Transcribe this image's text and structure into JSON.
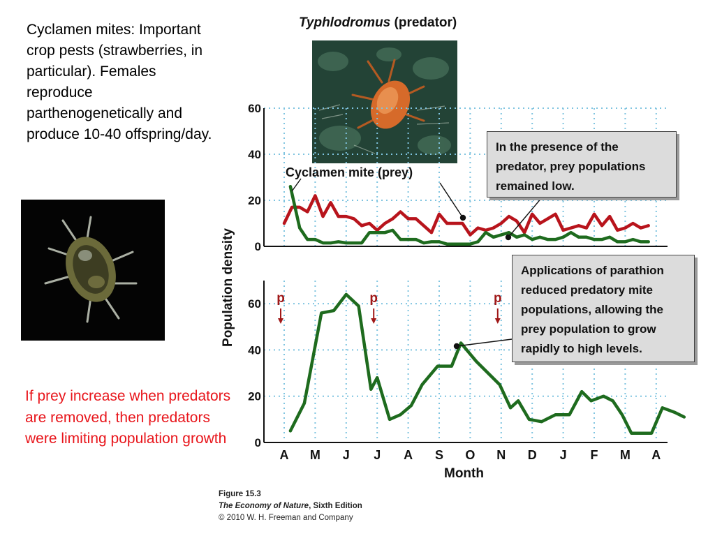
{
  "text": {
    "left_paragraph": "Cyclamen mites: Important crop pests (strawberries, in particular). Females reproduce parthenogenetically and produce 10-40 offspring/day.",
    "conclusion": "If prey increase when predators are removed, then predators were limiting population growth"
  },
  "figure": {
    "predator_title_italic": "Typhlodromus",
    "predator_title_rest": " (predator)",
    "prey_label": "Cyclamen mite (prey)",
    "box_presence": "In the presence of the predator, prey populations remained low.",
    "box_parathion": "Applications of parathion reduced predatory mite populations, allowing the prey population to grow rapidly to high levels.",
    "ylabel": "Population density",
    "xlabel": "Month",
    "credit_figure": "Figure 15.3",
    "credit_book_italic": "The Economy of Nature",
    "credit_book_rest": ", Sixth Edition",
    "credit_copyright": "© 2010 W. H. Freeman and Company"
  },
  "colors": {
    "predator": "#b8141c",
    "prey": "#1e6b1e",
    "grid": "#7fc4e0",
    "parathion_marker": "#a01818",
    "conclusion_text": "#e8151b"
  },
  "chart_data": [
    {
      "type": "line",
      "panel": "top",
      "categories": [
        "A",
        "M",
        "J",
        "J",
        "A",
        "S",
        "O",
        "N",
        "D",
        "J",
        "F",
        "M",
        "A"
      ],
      "ylim": [
        0,
        60
      ],
      "yticks": [
        0,
        20,
        40,
        60
      ],
      "series": [
        {
          "name": "Typhlodromus (predator)",
          "color": "#b8141c",
          "x": [
            0.0,
            0.25,
            0.5,
            0.75,
            1.0,
            1.25,
            1.5,
            1.75,
            2.0,
            2.25,
            2.5,
            2.75,
            3.0,
            3.25,
            3.5,
            3.75,
            4.0,
            4.25,
            4.5,
            4.75,
            5.0,
            5.25,
            5.5,
            5.75,
            6.0,
            6.25,
            6.5,
            6.75,
            7.0,
            7.25,
            7.5,
            7.75,
            8.0,
            8.25,
            8.5,
            8.75,
            9.0,
            9.25,
            9.5,
            9.75,
            10.0,
            10.25,
            10.5,
            10.75,
            11.0,
            11.25,
            11.5,
            11.75
          ],
          "values": [
            10,
            17,
            17,
            15,
            22,
            13,
            19,
            13,
            13,
            12,
            9,
            10,
            7,
            10,
            12,
            15,
            12,
            12,
            9,
            6,
            14,
            10,
            10,
            10,
            5,
            8,
            7,
            8,
            10,
            13,
            11,
            6,
            14,
            10,
            12,
            14,
            7,
            8,
            9,
            8,
            14,
            9,
            13,
            7,
            8,
            10,
            8,
            9
          ]
        },
        {
          "name": "Cyclamen mite (prey)",
          "color": "#1e6b1e",
          "x": [
            0.2,
            0.5,
            0.75,
            1.0,
            1.25,
            1.5,
            1.75,
            2.0,
            2.25,
            2.5,
            2.75,
            3.0,
            3.25,
            3.5,
            3.75,
            4.0,
            4.25,
            4.5,
            4.75,
            5.0,
            5.25,
            5.5,
            5.75,
            6.0,
            6.25,
            6.5,
            6.75,
            7.0,
            7.25,
            7.5,
            7.75,
            8.0,
            8.25,
            8.5,
            8.75,
            9.0,
            9.25,
            9.5,
            9.75,
            10.0,
            10.25,
            10.5,
            10.75,
            11.0,
            11.25,
            11.5,
            11.75
          ],
          "values": [
            26,
            8,
            3,
            3,
            1.5,
            1.5,
            2,
            1.5,
            1.5,
            1.5,
            6,
            6,
            6,
            7,
            3,
            3,
            3,
            1.5,
            2,
            2,
            1,
            1,
            1,
            1,
            2,
            6,
            4,
            5,
            6,
            4,
            5,
            3,
            4,
            3,
            3,
            4,
            6,
            4,
            4,
            3,
            3,
            4,
            2,
            2,
            3,
            2,
            2
          ]
        }
      ]
    },
    {
      "type": "line",
      "panel": "bottom",
      "categories": [
        "A",
        "M",
        "J",
        "J",
        "A",
        "S",
        "O",
        "N",
        "D",
        "J",
        "F",
        "M",
        "A"
      ],
      "ylim": [
        0,
        70
      ],
      "yticks": [
        0,
        20,
        40,
        60
      ],
      "series": [
        {
          "name": "Cyclamen mite (prey)",
          "color": "#1e6b1e",
          "x": [
            0.2,
            0.65,
            1.2,
            1.6,
            2.0,
            2.4,
            2.8,
            3.0,
            3.4,
            3.75,
            4.1,
            4.45,
            4.95,
            5.4,
            5.7,
            6.2,
            6.95,
            7.3,
            7.55,
            7.9,
            8.3,
            8.75,
            9.2,
            9.6,
            9.9,
            10.3,
            10.6,
            10.9,
            11.2,
            11.5,
            11.85,
            12.2,
            12.6,
            12.9
          ],
          "values": [
            5,
            17,
            56,
            57,
            64,
            59,
            23,
            28,
            10,
            12,
            16,
            25,
            33,
            33,
            43,
            35,
            25,
            15,
            18,
            10,
            9,
            12,
            12,
            22,
            18,
            20,
            18,
            12,
            4,
            4,
            4,
            15,
            13,
            11
          ]
        }
      ],
      "parathion_applications": [
        {
          "label": "p",
          "x": 0
        },
        {
          "label": "p",
          "x": 3
        },
        {
          "label": "p",
          "x": 7
        }
      ]
    }
  ]
}
